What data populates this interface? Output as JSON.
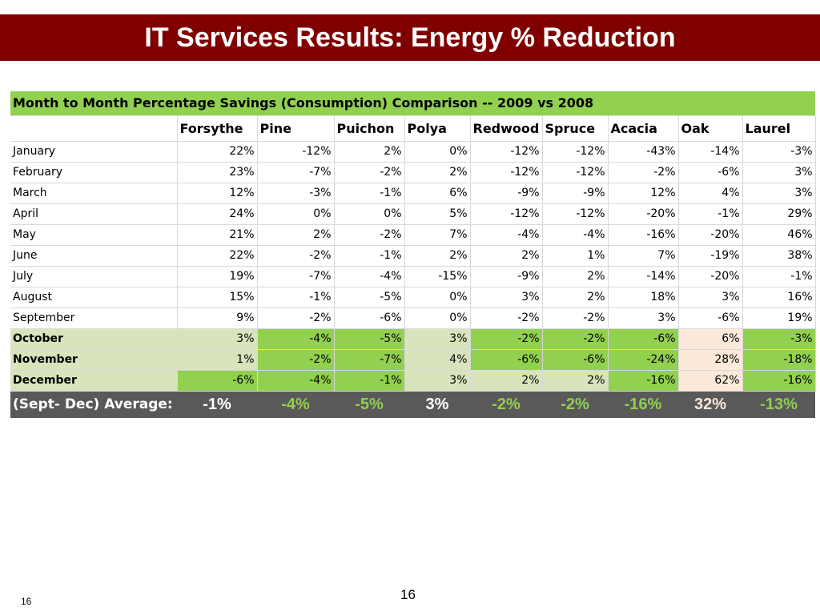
{
  "slide": {
    "title": "IT Services Results: Energy % Reduction",
    "page_number": "16",
    "footer_number": "16"
  },
  "colors": {
    "title_bg": "#800000",
    "green": "#92d050",
    "light_green": "#d8e4bc",
    "peach": "#fde9d9",
    "avg_bg": "#595959"
  },
  "table": {
    "caption": "Month to Month Percentage Savings (Consumption) Comparison -- 2009 vs 2008",
    "columns": [
      "Forsythe",
      "Pine",
      "Puichon",
      "Polya",
      "Redwood",
      "Spruce",
      "Acacia",
      "Oak",
      "Laurel"
    ],
    "rows": [
      {
        "month": "January",
        "bold": false,
        "values": [
          "22%",
          "-12%",
          "2%",
          "0%",
          "-12%",
          "-12%",
          "-43%",
          "-14%",
          "-3%"
        ]
      },
      {
        "month": "February",
        "bold": false,
        "values": [
          "23%",
          "-7%",
          "-2%",
          "2%",
          "-12%",
          "-12%",
          "-2%",
          "-6%",
          "3%"
        ]
      },
      {
        "month": "March",
        "bold": false,
        "values": [
          "12%",
          "-3%",
          "-1%",
          "6%",
          "-9%",
          "-9%",
          "12%",
          "4%",
          "3%"
        ]
      },
      {
        "month": "April",
        "bold": false,
        "values": [
          "24%",
          "0%",
          "0%",
          "5%",
          "-12%",
          "-12%",
          "-20%",
          "-1%",
          "29%"
        ]
      },
      {
        "month": "May",
        "bold": false,
        "values": [
          "21%",
          "2%",
          "-2%",
          "7%",
          "-4%",
          "-4%",
          "-16%",
          "-20%",
          "46%"
        ]
      },
      {
        "month": "June",
        "bold": false,
        "values": [
          "22%",
          "-2%",
          "-1%",
          "2%",
          "2%",
          "1%",
          "7%",
          "-19%",
          "38%"
        ]
      },
      {
        "month": "July",
        "bold": false,
        "values": [
          "19%",
          "-7%",
          "-4%",
          "-15%",
          "-9%",
          "2%",
          "-14%",
          "-20%",
          "-1%"
        ]
      },
      {
        "month": "August",
        "bold": false,
        "values": [
          "15%",
          "-1%",
          "-5%",
          "0%",
          "3%",
          "2%",
          "18%",
          "3%",
          "16%"
        ]
      },
      {
        "month": "September",
        "bold": false,
        "values": [
          "9%",
          "-2%",
          "-6%",
          "0%",
          "-2%",
          "-2%",
          "3%",
          "-6%",
          "19%"
        ]
      },
      {
        "month": "October",
        "bold": true,
        "label_fill": "light_green",
        "values": [
          "3%",
          "-4%",
          "-5%",
          "3%",
          "-2%",
          "-2%",
          "-6%",
          "6%",
          "-3%"
        ],
        "fills": [
          "light_green",
          "green",
          "green",
          "light_green",
          "green",
          "green",
          "green",
          "peach",
          "green"
        ]
      },
      {
        "month": "November",
        "bold": true,
        "label_fill": "light_green",
        "values": [
          "1%",
          "-2%",
          "-7%",
          "4%",
          "-6%",
          "-6%",
          "-24%",
          "28%",
          "-18%"
        ],
        "fills": [
          "light_green",
          "green",
          "green",
          "light_green",
          "green",
          "green",
          "green",
          "peach",
          "green"
        ]
      },
      {
        "month": "December",
        "bold": true,
        "label_fill": "light_green",
        "values": [
          "-6%",
          "-4%",
          "-1%",
          "3%",
          "2%",
          "2%",
          "-16%",
          "62%",
          "-16%"
        ],
        "fills": [
          "green",
          "green",
          "green",
          "light_green",
          "light_green",
          "light_green",
          "green",
          "peach",
          "green"
        ]
      }
    ],
    "average": {
      "label": "(Sept- Dec) Average:",
      "values": [
        "-1%",
        "-4%",
        "-5%",
        "3%",
        "-2%",
        "-2%",
        "-16%",
        "32%",
        "-13%"
      ],
      "text_colors": [
        "#ffffff",
        "#92d050",
        "#92d050",
        "#ffffff",
        "#92d050",
        "#92d050",
        "#92d050",
        "#fde9d9",
        "#92d050"
      ]
    }
  }
}
